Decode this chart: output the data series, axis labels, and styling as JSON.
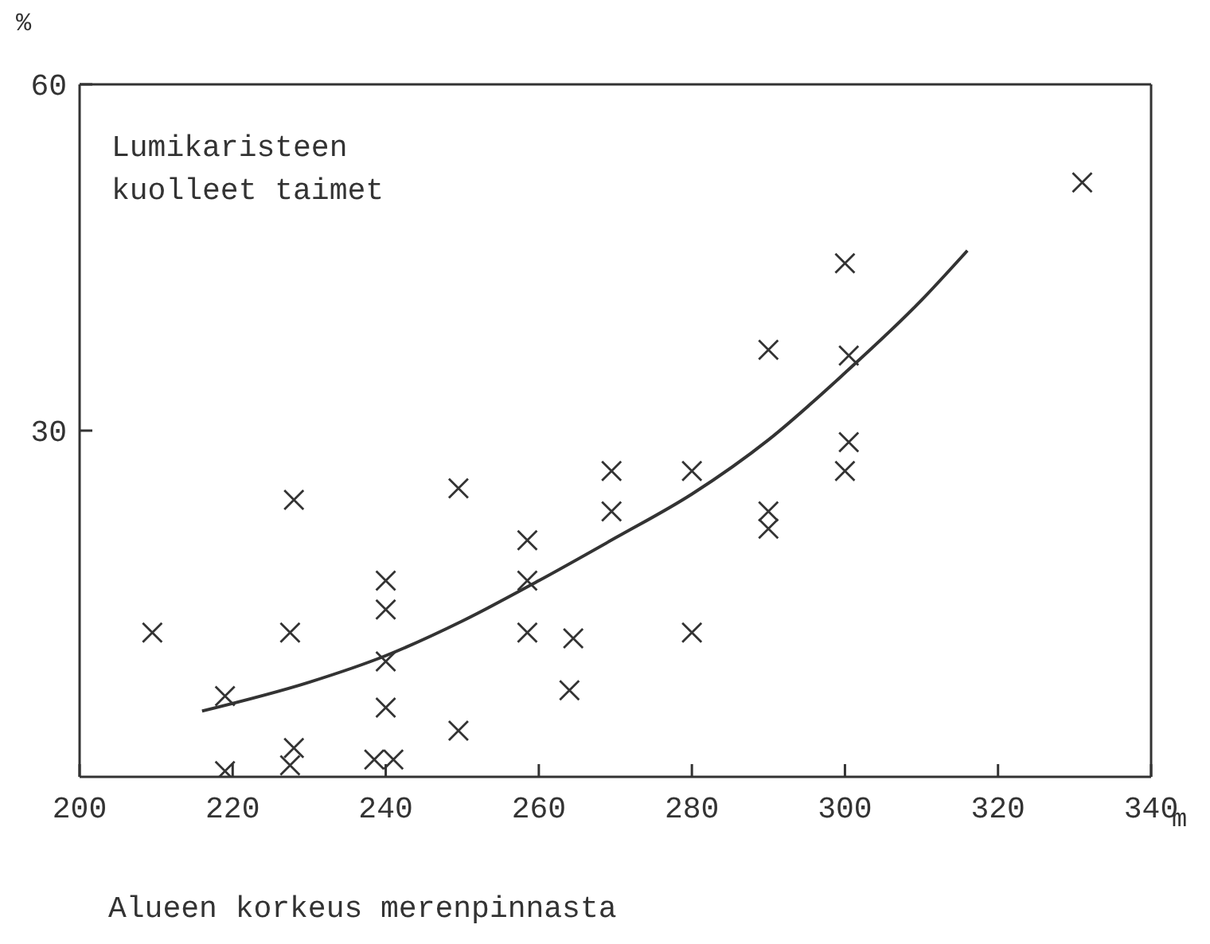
{
  "chart_data": {
    "type": "scatter",
    "title": "Lumikaristeen kuolleet taimet",
    "xlabel": "Alueen korkeus merenpinnasta",
    "ylabel": "%",
    "annotations": [
      "m"
    ],
    "xlim": [
      200,
      340
    ],
    "xticks": [
      200,
      220,
      240,
      260,
      280,
      300,
      320,
      340
    ],
    "ylim": [
      0,
      60
    ],
    "yticks": [
      30,
      60
    ],
    "legend": false,
    "marker": "cross",
    "series": [
      {
        "color": "#333333",
        "x": [
          209.5,
          219,
          219,
          228,
          227.5,
          228,
          227.5,
          240,
          240,
          240,
          240,
          238.5,
          241,
          249.5,
          249.5,
          258.5,
          258.5,
          258.5,
          264.5,
          264,
          269.5,
          269.5,
          280,
          280,
          290,
          290,
          290,
          300,
          300.5,
          300.5,
          300,
          331
        ],
        "values": [
          12.5,
          7,
          0.5,
          24,
          12.5,
          2.5,
          1,
          17,
          14.5,
          10,
          6,
          1.5,
          1.5,
          25,
          4,
          20.5,
          17,
          12.5,
          12,
          7.5,
          26.5,
          23,
          26.5,
          12.5,
          37,
          23,
          21.5,
          44.5,
          36.5,
          29,
          26.5,
          51.5
        ]
      },
      {
        "type": "line",
        "color": "#333333",
        "marker": "none",
        "line_style": "solid",
        "x": [
          216,
          230,
          240,
          250,
          260,
          270,
          280,
          290,
          300,
          310,
          316
        ],
        "values": [
          5.7,
          8.2,
          10.5,
          13.5,
          17,
          20.7,
          24.5,
          29.2,
          35,
          41.3,
          45.6
        ]
      }
    ]
  }
}
